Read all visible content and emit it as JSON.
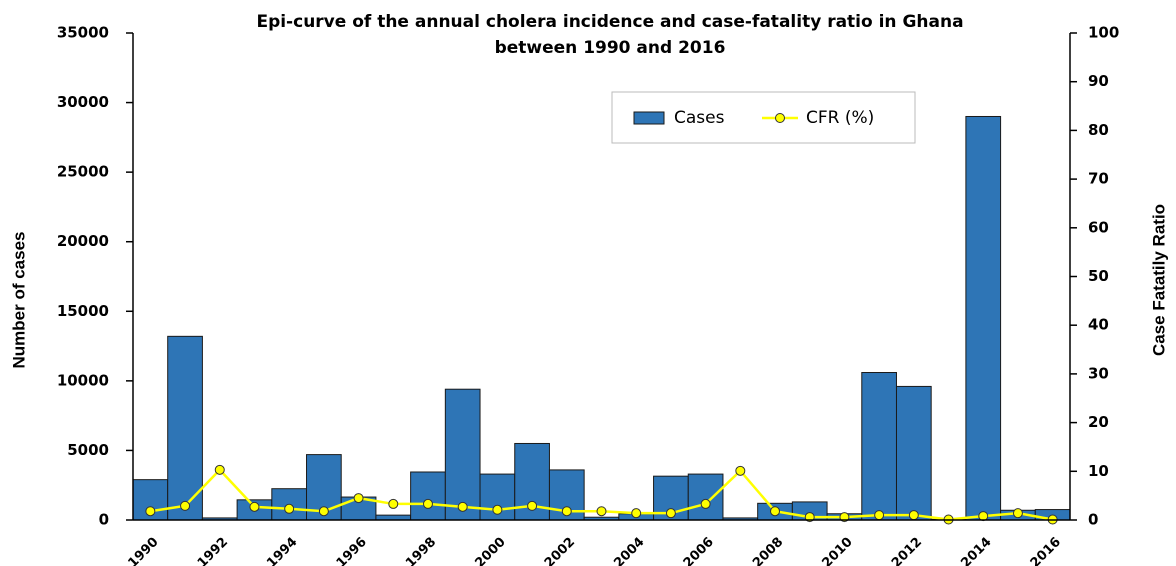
{
  "chart_data": {
    "type": "bar+line",
    "title": [
      "Epi-curve of the annual cholera incidence and case-fatality ratio in Ghana",
      "between 1990 and 2016"
    ],
    "y_label": "Number of cases",
    "y2_label": "Case Fatatily Ratio",
    "categories": [
      "1990",
      null,
      "1992",
      null,
      "1994",
      null,
      "1996",
      null,
      "1998",
      null,
      "2000",
      null,
      "2002",
      null,
      "2004",
      null,
      "2006",
      null,
      "2008",
      null,
      "2010",
      null,
      "2012",
      null,
      "2014",
      null,
      "2016"
    ],
    "series": [
      {
        "name": "Cases",
        "type": "bar",
        "color": "#2e75b6",
        "values": [
          2900,
          13200,
          150,
          1450,
          2250,
          4700,
          1650,
          350,
          3450,
          9400,
          3300,
          5500,
          3600,
          200,
          450,
          3150,
          3300,
          150,
          1200,
          1300,
          450,
          10600,
          9600,
          50,
          29000,
          700,
          750
        ]
      },
      {
        "name": "CFR (%)",
        "type": "line",
        "axis": "y2",
        "color": "#ffff00",
        "values": [
          1.8,
          2.9,
          10.3,
          2.7,
          2.3,
          1.8,
          4.5,
          3.3,
          3.3,
          2.7,
          2.1,
          2.9,
          1.8,
          1.8,
          1.4,
          1.4,
          3.3,
          10.1,
          1.8,
          0.6,
          0.6,
          1.0,
          1.0,
          0.1,
          0.8,
          1.4,
          0.1
        ]
      }
    ],
    "ylim": [
      0,
      35000
    ],
    "yticks": [
      0,
      5000,
      10000,
      15000,
      20000,
      25000,
      30000,
      35000
    ],
    "y2lim": [
      0,
      100
    ],
    "y2ticks": [
      0,
      10,
      20,
      30,
      40,
      50,
      60,
      70,
      80,
      90,
      100
    ],
    "legend": "top-right"
  }
}
